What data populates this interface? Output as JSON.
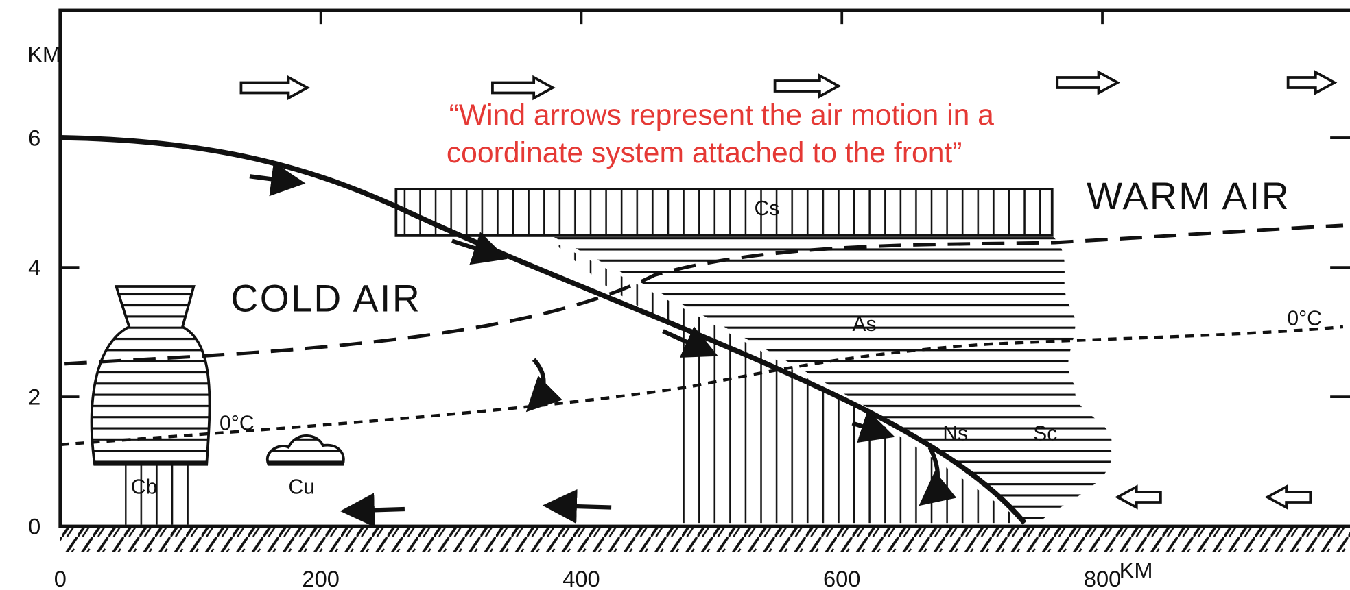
{
  "axes": {
    "y_label": "KM",
    "yticks": [
      0,
      2,
      4,
      6
    ],
    "x_label": "KM",
    "xticks": [
      0,
      200,
      400,
      600,
      800
    ]
  },
  "regions": {
    "cold": "COLD AIR",
    "warm": "WARM AIR"
  },
  "clouds": {
    "cs": "Cs",
    "as": "As",
    "ns": "Ns",
    "sc": "Sc",
    "cb": "Cb",
    "cu": "Cu"
  },
  "isotherms": {
    "cold": "0°C",
    "warm": "0°C"
  },
  "annotation": {
    "line1": "“Wind arrows represent the air motion in a",
    "line2": "coordinate system attached to the front”"
  }
}
